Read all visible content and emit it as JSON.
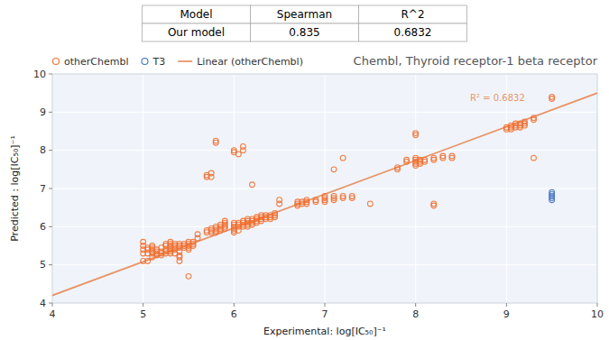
{
  "chart_data": [
    {
      "type": "table",
      "headers": [
        "Model",
        "Spearman",
        "R^2"
      ],
      "rows": [
        [
          "Our model",
          "0.835",
          "0.6832"
        ]
      ]
    },
    {
      "type": "scatter",
      "title": "Chembl, Thyroid receptor-1 beta receptor",
      "xlabel": "Experimental: log[IC₅₀]⁻¹",
      "ylabel": "Predicted : log[IC₅₀]⁻¹",
      "xlim": [
        4,
        10
      ],
      "ylim": [
        4,
        10
      ],
      "xticks": [
        4,
        5,
        6,
        7,
        8,
        9,
        10
      ],
      "yticks": [
        4,
        5,
        6,
        7,
        8,
        9,
        10
      ],
      "grid": true,
      "legend": "upper left",
      "annotations": [
        {
          "text": "R² = 0.6832",
          "x": 8.6,
          "y": 9.45,
          "color": "#e8956a"
        }
      ],
      "series": [
        {
          "name": "otherChembl",
          "type": "scatter",
          "marker": "circle",
          "color": "#f07030",
          "x": [
            5.0,
            5.0,
            5.0,
            5.0,
            5.0,
            5.05,
            5.05,
            5.05,
            5.05,
            5.1,
            5.1,
            5.1,
            5.1,
            5.1,
            5.1,
            5.15,
            5.15,
            5.15,
            5.15,
            5.2,
            5.2,
            5.2,
            5.2,
            5.25,
            5.25,
            5.25,
            5.25,
            5.25,
            5.3,
            5.3,
            5.3,
            5.3,
            5.3,
            5.3,
            5.3,
            5.35,
            5.35,
            5.35,
            5.35,
            5.35,
            5.4,
            5.4,
            5.4,
            5.4,
            5.4,
            5.4,
            5.4,
            5.45,
            5.45,
            5.45,
            5.5,
            5.5,
            5.5,
            5.5,
            5.5,
            5.5,
            5.55,
            5.55,
            5.55,
            5.6,
            5.6,
            5.7,
            5.7,
            5.75,
            5.75,
            5.75,
            5.8,
            5.8,
            5.8,
            5.8,
            5.85,
            5.85,
            5.85,
            5.85,
            5.9,
            5.9,
            5.9,
            5.9,
            5.9,
            6.0,
            6.0,
            6.0,
            6.0,
            6.0,
            6.0,
            6.05,
            6.05,
            6.05,
            6.05,
            6.1,
            6.1,
            6.1,
            6.1,
            6.15,
            6.15,
            6.15,
            6.15,
            6.15,
            6.2,
            6.2,
            6.2,
            6.2,
            6.2,
            6.25,
            6.25,
            6.25,
            6.25,
            6.3,
            6.3,
            6.3,
            6.3,
            6.35,
            6.35,
            6.35,
            6.4,
            6.4,
            6.4,
            6.45,
            6.45,
            6.45,
            6.5,
            6.5,
            5.7,
            5.7,
            5.75,
            5.75,
            5.8,
            5.8,
            6.0,
            6.0,
            6.05,
            6.1,
            6.1,
            6.7,
            6.7,
            6.7,
            6.75,
            6.75,
            6.8,
            6.8,
            6.8,
            6.9,
            6.9,
            7.0,
            7.0,
            7.0,
            7.0,
            7.1,
            7.1,
            7.1,
            7.1,
            7.2,
            7.2,
            7.2,
            7.3,
            7.3,
            7.5,
            7.8,
            7.8,
            7.9,
            7.9,
            8.0,
            8.0,
            8.0,
            8.0,
            8.0,
            8.0,
            8.0,
            8.05,
            8.05,
            8.05,
            8.1,
            8.1,
            8.2,
            8.2,
            8.2,
            8.2,
            8.3,
            8.3,
            8.4,
            8.4,
            9.0,
            9.0,
            9.05,
            9.05,
            9.05,
            9.1,
            9.1,
            9.1,
            9.15,
            9.15,
            9.15,
            9.2,
            9.2,
            9.2,
            9.3,
            9.3,
            9.3,
            9.5,
            9.5
          ],
          "values": [
            5.1,
            5.3,
            5.4,
            5.5,
            5.6,
            5.1,
            5.3,
            5.4,
            5.45,
            5.2,
            5.3,
            5.35,
            5.4,
            5.45,
            5.5,
            5.25,
            5.3,
            5.35,
            5.4,
            5.25,
            5.3,
            5.35,
            5.45,
            5.3,
            5.35,
            5.4,
            5.5,
            5.55,
            5.3,
            5.35,
            5.4,
            5.45,
            5.5,
            5.55,
            5.6,
            5.3,
            5.4,
            5.45,
            5.5,
            5.55,
            5.1,
            5.2,
            5.25,
            5.35,
            5.45,
            5.5,
            5.55,
            5.45,
            5.5,
            5.55,
            4.7,
            5.4,
            5.45,
            5.5,
            5.55,
            5.6,
            5.5,
            5.55,
            5.6,
            5.7,
            5.8,
            5.85,
            5.9,
            5.85,
            5.9,
            5.95,
            5.85,
            5.9,
            5.95,
            6.0,
            5.9,
            5.95,
            6.0,
            6.05,
            5.95,
            6.0,
            6.05,
            6.1,
            6.15,
            5.85,
            5.9,
            5.95,
            6.0,
            6.05,
            6.1,
            5.9,
            6.0,
            6.05,
            6.1,
            6.0,
            6.05,
            6.1,
            6.15,
            6.0,
            6.05,
            6.1,
            6.15,
            6.2,
            6.05,
            6.1,
            6.15,
            6.2,
            7.1,
            6.1,
            6.15,
            6.2,
            6.25,
            6.15,
            6.2,
            6.25,
            6.3,
            6.2,
            6.25,
            6.3,
            6.2,
            6.25,
            6.3,
            6.25,
            6.3,
            6.35,
            6.6,
            6.7,
            7.3,
            7.35,
            7.3,
            7.4,
            8.2,
            8.25,
            7.95,
            8.0,
            7.9,
            8.0,
            8.1,
            6.55,
            6.6,
            6.65,
            6.6,
            6.65,
            6.6,
            6.65,
            6.7,
            6.65,
            6.7,
            6.65,
            6.7,
            6.75,
            6.8,
            6.7,
            6.75,
            6.8,
            7.5,
            6.75,
            6.8,
            7.8,
            6.75,
            6.8,
            6.6,
            7.5,
            7.55,
            7.7,
            7.75,
            7.6,
            7.65,
            7.7,
            7.75,
            7.8,
            8.4,
            8.45,
            7.65,
            7.7,
            7.75,
            7.7,
            7.75,
            6.55,
            6.6,
            7.75,
            7.8,
            7.8,
            7.85,
            7.8,
            7.85,
            8.55,
            8.6,
            8.55,
            8.6,
            8.65,
            8.6,
            8.65,
            8.7,
            8.6,
            8.65,
            8.7,
            8.65,
            8.7,
            8.75,
            7.8,
            8.8,
            8.85,
            9.35,
            9.4
          ]
        },
        {
          "name": "T3",
          "type": "scatter",
          "marker": "circle",
          "color": "#4472c4",
          "x": [
            9.5,
            9.5,
            9.5,
            9.5,
            9.5
          ],
          "values": [
            6.7,
            6.75,
            6.8,
            6.85,
            6.9
          ]
        },
        {
          "name": "Linear (otherChembl)",
          "type": "line",
          "line_style": "solid",
          "color": "#e8956a",
          "x": [
            4,
            10
          ],
          "values": [
            4.2,
            9.5
          ]
        }
      ]
    }
  ]
}
